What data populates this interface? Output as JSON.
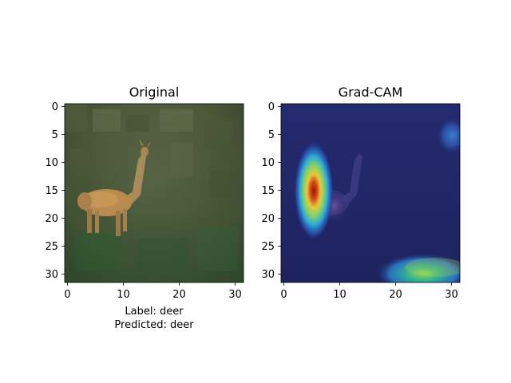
{
  "panels": [
    {
      "title": "Original",
      "x_ticks": [
        "0",
        "10",
        "20",
        "30"
      ],
      "y_ticks": [
        "0",
        "5",
        "10",
        "15",
        "20",
        "25",
        "30"
      ],
      "caption_lines": [
        "Label: deer",
        "Predicted: deer"
      ],
      "image_content": "deer-in-grass"
    },
    {
      "title": "Grad-CAM",
      "x_ticks": [
        "0",
        "10",
        "20",
        "30"
      ],
      "y_ticks": [
        "0",
        "5",
        "10",
        "15",
        "20",
        "25",
        "30"
      ],
      "image_content": "gradcam-heatmap-overlay"
    }
  ],
  "colors": {
    "grass_dark": "#3f4a33",
    "grass_mid": "#5d6a45",
    "deer_body": "#b98b4e",
    "heat_base": "#1f2566",
    "heat_hot": "#9b1a12"
  }
}
